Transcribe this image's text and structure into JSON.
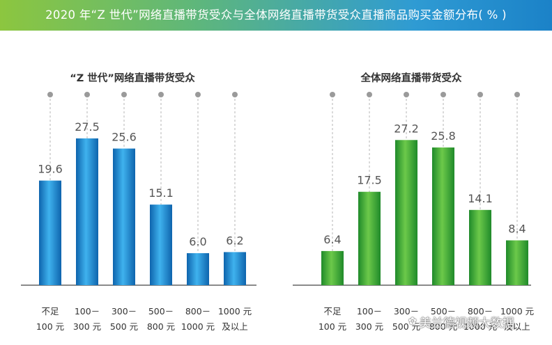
{
  "banner": {
    "title": "2020 年“Z 世代”网络直播带货受众与全体网络直播带货受众直播商品购买金额分布( % )"
  },
  "watermark": {
    "text": "美兰德视频大数据"
  },
  "colors": {
    "left_bar": "#1a8ad4",
    "right_bar": "#3aa935"
  },
  "chart_data": [
    {
      "type": "bar",
      "title": "“Z 世代”网络直播带货受众",
      "categories": [
        [
          "不足",
          "100 元"
        ],
        [
          "100－",
          "300 元"
        ],
        [
          "300－",
          "500 元"
        ],
        [
          "500－",
          "800 元"
        ],
        [
          "800－",
          "1000 元"
        ],
        [
          "1000 元",
          "及以上"
        ]
      ],
      "values": [
        19.6,
        27.5,
        25.6,
        15.1,
        6.0,
        6.2
      ],
      "value_labels": [
        "19.6",
        "27.5",
        "25.6",
        "15.1",
        "6.0",
        "6.2"
      ],
      "ylim": [
        0,
        30
      ]
    },
    {
      "type": "bar",
      "title": "全体网络直播带货受众",
      "categories": [
        [
          "不足",
          "100 元"
        ],
        [
          "100－",
          "300 元"
        ],
        [
          "300－",
          "500 元"
        ],
        [
          "500－",
          "800 元"
        ],
        [
          "800－",
          "1000 元"
        ],
        [
          "1000 元",
          "及以上"
        ]
      ],
      "values": [
        6.4,
        17.5,
        27.2,
        25.8,
        14.1,
        8.4
      ],
      "value_labels": [
        "6.4",
        "17.5",
        "27.2",
        "25.8",
        "14.1",
        "8.4"
      ],
      "ylim": [
        0,
        30
      ]
    }
  ]
}
